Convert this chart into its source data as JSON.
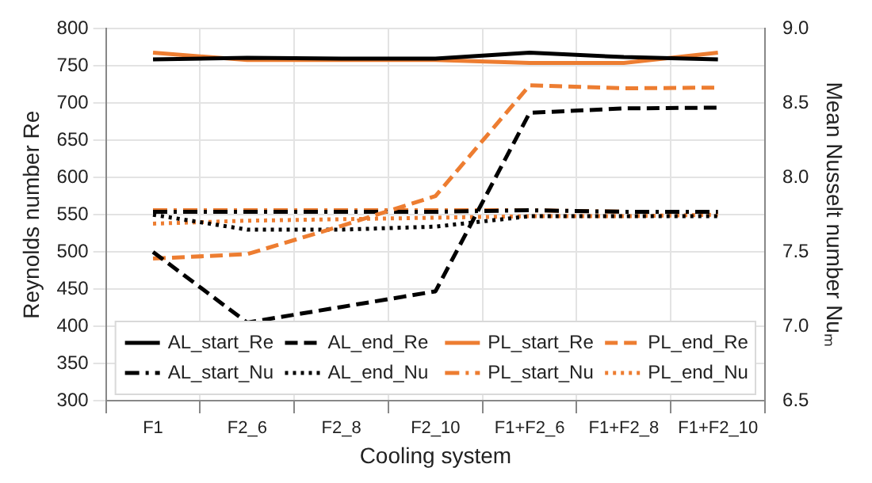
{
  "chart_data": {
    "type": "line",
    "xlabel": "Cooling system",
    "ylabel": "Reynolds number Re",
    "y2label": "Mean Nusselt number Nuₘ",
    "categories": [
      "F1",
      "F2_6",
      "F2_8",
      "F2_10",
      "F1+F2_6",
      "F1+F2_8",
      "F1+F2_10"
    ],
    "ylim": [
      300,
      800
    ],
    "yticks": [
      300,
      350,
      400,
      450,
      500,
      550,
      600,
      650,
      700,
      750,
      800
    ],
    "y2lim": [
      6.5,
      9.0
    ],
    "y2ticks": [
      6.5,
      {
        "value": 7,
        "label": "7.0"
      },
      7.5,
      {
        "value": 8,
        "label": "8.0"
      },
      8.5,
      {
        "value": 9,
        "label": "9.0"
      }
    ],
    "grid": true,
    "legend": "bottom",
    "marker": "none",
    "series": [
      {
        "name": "AL_start_Re",
        "color": "#000000",
        "line_style": "solid",
        "values": [
          759,
          761,
          760,
          760,
          768,
          762,
          759
        ]
      },
      {
        "name": "AL_end_Re",
        "color": "#000000",
        "line_style": "dashed",
        "values": [
          500,
          405,
          426,
          447,
          687,
          693,
          694
        ]
      },
      {
        "name": "PL_start_Re",
        "color": "#ed7d31",
        "line_style": "solid",
        "values": [
          768,
          758,
          758,
          758,
          754,
          754,
          768
        ]
      },
      {
        "name": "PL_end_Re",
        "color": "#ed7d31",
        "line_style": "dashed",
        "values": [
          491,
          497,
          535,
          575,
          724,
          720,
          721
        ]
      },
      {
        "name": "AL_start_Nu",
        "color": "#000000",
        "line_style": "dashdot",
        "axis": "y2",
        "values": [
          7.77,
          7.77,
          7.77,
          7.77,
          7.78,
          7.77,
          7.77
        ]
      },
      {
        "name": "AL_end_Nu",
        "color": "#000000",
        "line_style": "dotted",
        "axis": "y2",
        "values": [
          7.75,
          7.65,
          7.65,
          7.67,
          7.74,
          7.74,
          7.74
        ]
      },
      {
        "name": "PL_start_Nu",
        "color": "#ed7d31",
        "line_style": "dashdot",
        "axis": "y2",
        "values": [
          7.78,
          7.78,
          7.78,
          7.78,
          7.78,
          7.77,
          7.77
        ]
      },
      {
        "name": "PL_end_Nu",
        "color": "#ed7d31",
        "line_style": "dotted",
        "axis": "y2",
        "values": [
          7.69,
          7.71,
          7.72,
          7.73,
          7.74,
          7.74,
          7.75
        ]
      }
    ]
  }
}
